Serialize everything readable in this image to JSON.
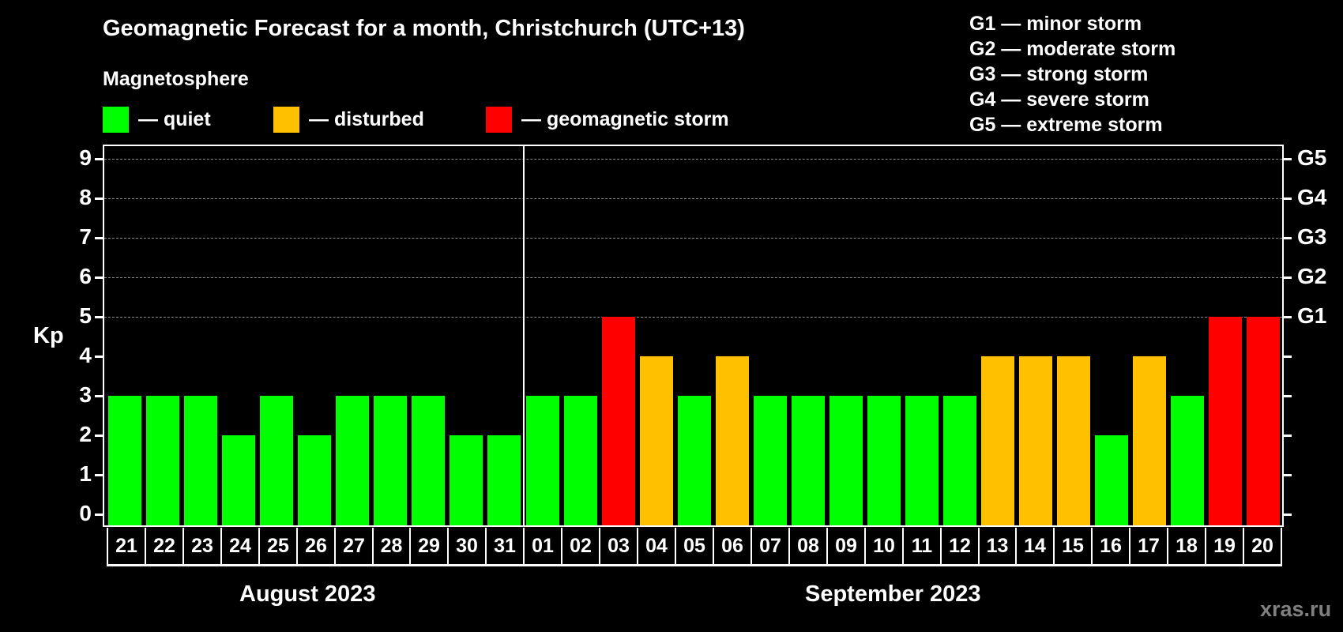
{
  "header": {
    "title": "Geomagnetic Forecast for a month, Christchurch (UTC+13)",
    "subtitle": "Magnetosphere"
  },
  "legend": {
    "items": [
      {
        "label": "— quiet",
        "color": "#00ff00"
      },
      {
        "label": "— disturbed",
        "color": "#ffc000"
      },
      {
        "label": "— geomagnetic storm",
        "color": "#ff0000"
      }
    ]
  },
  "storm_scale": {
    "items": [
      {
        "label": "G1 — minor storm"
      },
      {
        "label": "G2 — moderate storm"
      },
      {
        "label": "G3 — strong storm"
      },
      {
        "label": "G4 — severe storm"
      },
      {
        "label": "G5 — extreme storm"
      }
    ]
  },
  "axes": {
    "ylabel": "Kp",
    "yticks": [
      "0",
      "1",
      "2",
      "3",
      "4",
      "5",
      "6",
      "7",
      "8",
      "9"
    ],
    "right_ticks": [
      {
        "kp": 5,
        "label": "G1"
      },
      {
        "kp": 6,
        "label": "G2"
      },
      {
        "kp": 7,
        "label": "G3"
      },
      {
        "kp": 8,
        "label": "G4"
      },
      {
        "kp": 9,
        "label": "G5"
      }
    ]
  },
  "months": [
    {
      "label": "August 2023"
    },
    {
      "label": "September 2023"
    }
  ],
  "watermark": "xras.ru",
  "colors": {
    "quiet": "#00ff00",
    "disturbed": "#ffc000",
    "storm": "#ff0000",
    "background": "#000000",
    "grid": "#888888"
  },
  "chart_data": {
    "type": "bar",
    "title": "Geomagnetic Forecast for a month, Christchurch (UTC+13)",
    "xlabel": "",
    "ylabel": "Kp",
    "ylim": [
      0,
      9
    ],
    "grid": true,
    "legend_position": "top",
    "categories": [
      "21",
      "22",
      "23",
      "24",
      "25",
      "26",
      "27",
      "28",
      "29",
      "30",
      "31",
      "01",
      "02",
      "03",
      "04",
      "05",
      "06",
      "07",
      "08",
      "09",
      "10",
      "11",
      "12",
      "13",
      "14",
      "15",
      "16",
      "17",
      "18",
      "19",
      "20"
    ],
    "values": [
      3,
      3,
      3,
      2,
      3,
      2,
      3,
      3,
      3,
      2,
      2,
      3,
      3,
      5,
      4,
      3,
      4,
      3,
      3,
      3,
      3,
      3,
      3,
      4,
      4,
      4,
      2,
      4,
      3,
      5,
      5
    ],
    "status": [
      "quiet",
      "quiet",
      "quiet",
      "quiet",
      "quiet",
      "quiet",
      "quiet",
      "quiet",
      "quiet",
      "quiet",
      "quiet",
      "quiet",
      "quiet",
      "storm",
      "disturbed",
      "quiet",
      "disturbed",
      "quiet",
      "quiet",
      "quiet",
      "quiet",
      "quiet",
      "quiet",
      "disturbed",
      "disturbed",
      "disturbed",
      "quiet",
      "disturbed",
      "quiet",
      "storm",
      "storm"
    ],
    "month_groups": [
      {
        "label": "August 2023",
        "days": [
          "21",
          "22",
          "23",
          "24",
          "25",
          "26",
          "27",
          "28",
          "29",
          "30",
          "31"
        ]
      },
      {
        "label": "September 2023",
        "days": [
          "01",
          "02",
          "03",
          "04",
          "05",
          "06",
          "07",
          "08",
          "09",
          "10",
          "11",
          "12",
          "13",
          "14",
          "15",
          "16",
          "17",
          "18",
          "19",
          "20"
        ]
      }
    ],
    "secondary_yaxis": {
      "5": "G1",
      "6": "G2",
      "7": "G3",
      "8": "G4",
      "9": "G5"
    }
  }
}
